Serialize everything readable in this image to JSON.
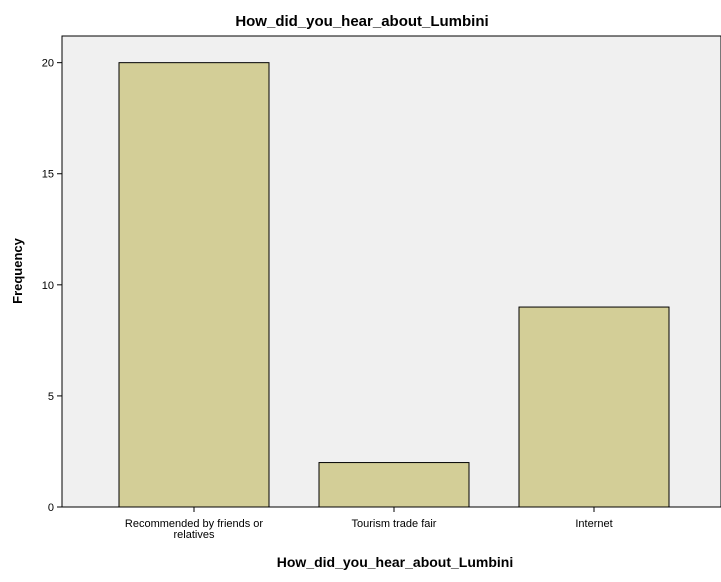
{
  "chart_data": {
    "type": "bar",
    "title": "How_did_you_hear_about_Lumbini",
    "xlabel": "How_did_you_hear_about_Lumbini",
    "ylabel": "Frequency",
    "categories": [
      [
        "Recommended by friends or",
        "relatives"
      ],
      [
        "Tourism trade fair"
      ],
      [
        "Internet"
      ]
    ],
    "values": [
      20,
      2,
      9
    ],
    "ylim": [
      0,
      21.2
    ],
    "yticks": [
      0,
      5,
      10,
      15,
      20
    ],
    "grid": false,
    "legend": "none",
    "colors": {
      "bar_fill": "#d3ce97",
      "bar_stroke": "#000000",
      "plot_background": "#f0f0f0",
      "axis": "#000000",
      "text": "#000000"
    }
  }
}
